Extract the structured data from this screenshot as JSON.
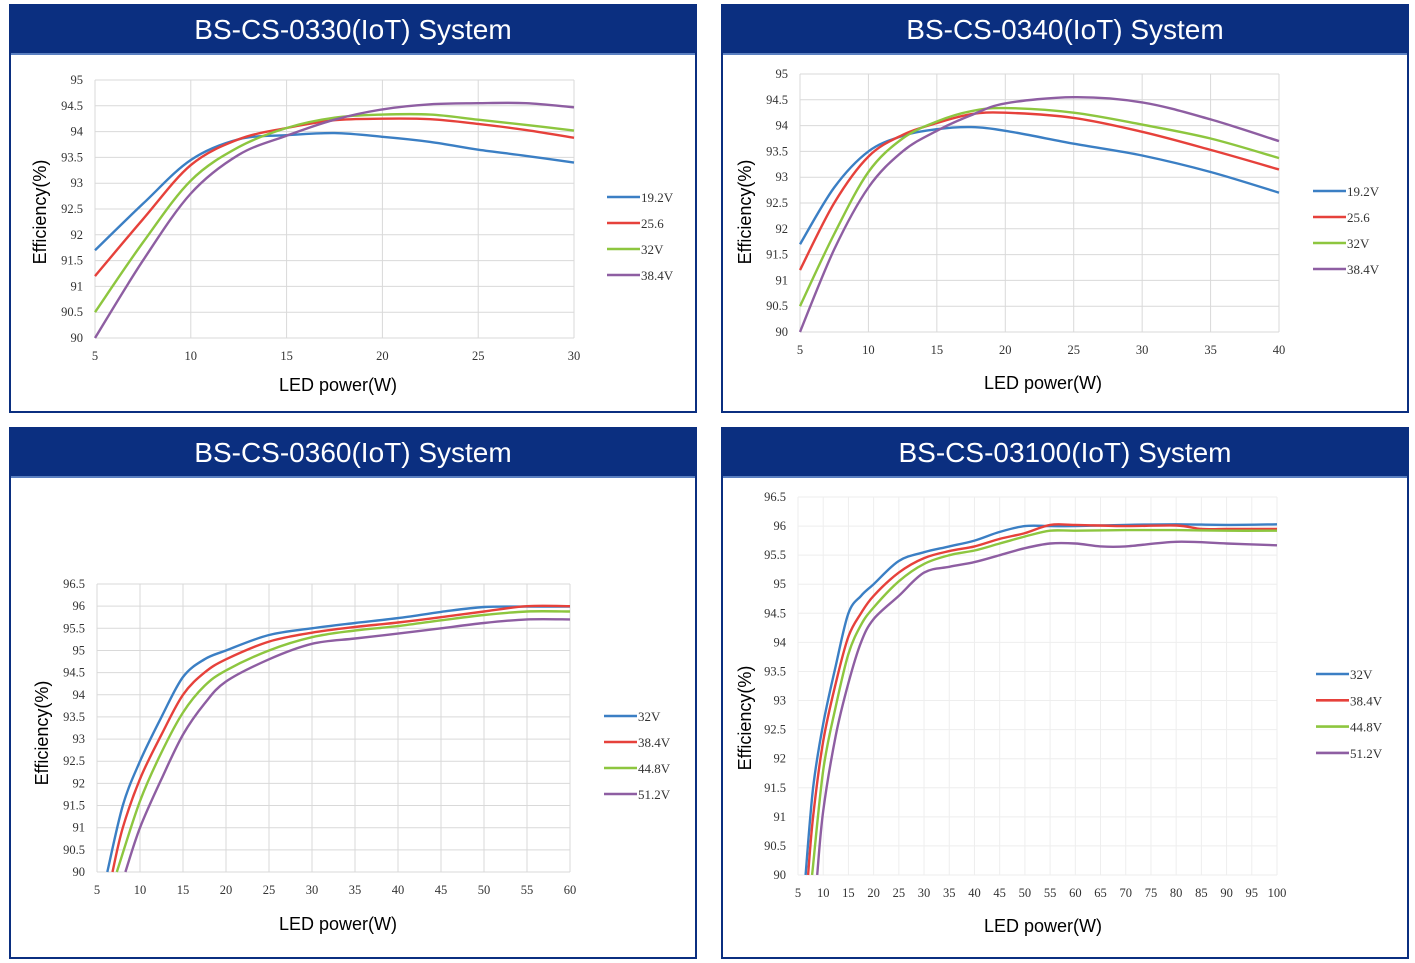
{
  "chart_data": [
    {
      "type": "line",
      "title": "BS-CS-0330(IoT) System",
      "xlabel": "LED power(W)",
      "ylabel": "Efficiency(%)",
      "xlim": [
        5,
        30
      ],
      "ylim": [
        90,
        95
      ],
      "xticks": [
        "5",
        "10",
        "15",
        "20",
        "25",
        "30"
      ],
      "yticks": [
        "90",
        "90.5",
        "91",
        "91.5",
        "92",
        "92.5",
        "93",
        "93.5",
        "94",
        "94.5",
        "95"
      ],
      "grid": true,
      "legend_position": "right",
      "series": [
        {
          "name": "19.2V",
          "color": "#3b7fc4",
          "x": [
            5,
            7.5,
            10,
            12.5,
            15,
            17.5,
            20,
            22.5,
            25,
            27.5,
            30
          ],
          "y": [
            91.7,
            92.6,
            93.45,
            93.85,
            93.93,
            93.97,
            93.9,
            93.8,
            93.65,
            93.53,
            93.4
          ]
        },
        {
          "name": "25.6",
          "color": "#e6413b",
          "x": [
            5,
            7.5,
            10,
            12.5,
            15,
            17.5,
            20,
            22.5,
            25,
            27.5,
            30
          ],
          "y": [
            91.2,
            92.3,
            93.35,
            93.85,
            94.07,
            94.22,
            94.25,
            94.24,
            94.15,
            94.03,
            93.88
          ]
        },
        {
          "name": "32V",
          "color": "#8dc63f",
          "x": [
            5,
            7.5,
            10,
            12.5,
            15,
            17.5,
            20,
            22.5,
            25,
            27.5,
            30
          ],
          "y": [
            90.5,
            91.85,
            93.05,
            93.7,
            94.07,
            94.27,
            94.33,
            94.33,
            94.23,
            94.13,
            94.02
          ]
        },
        {
          "name": "38.4V",
          "color": "#8e5ea2",
          "x": [
            5,
            7.5,
            10,
            12.5,
            15,
            17.5,
            20,
            22.5,
            25,
            27.5,
            30
          ],
          "y": [
            90.0,
            91.5,
            92.8,
            93.55,
            93.92,
            94.23,
            94.43,
            94.53,
            94.55,
            94.55,
            94.47
          ]
        }
      ]
    },
    {
      "type": "line",
      "title": "BS-CS-0340(IoT) System",
      "xlabel": "LED power(W)",
      "ylabel": "Efficiency(%)",
      "xlim": [
        5,
        40
      ],
      "ylim": [
        90,
        95
      ],
      "xticks": [
        "5",
        "10",
        "15",
        "20",
        "25",
        "30",
        "35",
        "40"
      ],
      "yticks": [
        "90",
        "90.5",
        "91",
        "91.5",
        "92",
        "92.5",
        "93",
        "93.5",
        "94",
        "94.5",
        "95"
      ],
      "grid": true,
      "legend_position": "right",
      "series": [
        {
          "name": "19.2V",
          "color": "#3b7fc4",
          "x": [
            5,
            7.5,
            10,
            12.5,
            15,
            17.5,
            20,
            25,
            30,
            35,
            40
          ],
          "y": [
            91.7,
            92.8,
            93.5,
            93.8,
            93.93,
            93.97,
            93.9,
            93.65,
            93.42,
            93.1,
            92.7
          ]
        },
        {
          "name": "25.6",
          "color": "#e6413b",
          "x": [
            5,
            7.5,
            10,
            12.5,
            15,
            17.5,
            20,
            25,
            30,
            35,
            40
          ],
          "y": [
            91.2,
            92.5,
            93.4,
            93.82,
            94.05,
            94.22,
            94.25,
            94.15,
            93.88,
            93.53,
            93.15
          ]
        },
        {
          "name": "32V",
          "color": "#8dc63f",
          "x": [
            5,
            7.5,
            10,
            12.5,
            15,
            17.5,
            20,
            25,
            30,
            35,
            40
          ],
          "y": [
            90.5,
            91.9,
            93.1,
            93.75,
            94.08,
            94.28,
            94.34,
            94.25,
            94.02,
            93.75,
            93.37
          ]
        },
        {
          "name": "38.4V",
          "color": "#8e5ea2",
          "x": [
            5,
            7.5,
            10,
            12.5,
            15,
            17.5,
            20,
            25,
            30,
            35,
            40
          ],
          "y": [
            90.0,
            91.6,
            92.8,
            93.5,
            93.9,
            94.2,
            94.43,
            94.55,
            94.45,
            94.12,
            93.7
          ]
        }
      ]
    },
    {
      "type": "line",
      "title": "BS-CS-0360(IoT) System",
      "xlabel": "LED power(W)",
      "ylabel": "Efficiency(%)",
      "xlim": [
        5,
        60
      ],
      "ylim": [
        90,
        96.5
      ],
      "xticks": [
        "5",
        "10",
        "15",
        "20",
        "25",
        "30",
        "35",
        "40",
        "45",
        "50",
        "55",
        "60"
      ],
      "yticks": [
        "90",
        "90.5",
        "91",
        "91.5",
        "92",
        "92.5",
        "93",
        "93.5",
        "94",
        "94.5",
        "95",
        "95.5",
        "96",
        "96.5"
      ],
      "grid": true,
      "legend_position": "right",
      "series": [
        {
          "name": "32V",
          "color": "#3b7fc4",
          "x": [
            6.2,
            8,
            10,
            12.5,
            15,
            17.5,
            20,
            25,
            30,
            35,
            40,
            45,
            50,
            55,
            60
          ],
          "y": [
            90,
            91.5,
            92.5,
            93.5,
            94.4,
            94.8,
            95.0,
            95.35,
            95.5,
            95.62,
            95.73,
            95.87,
            95.98,
            95.99,
            95.99
          ]
        },
        {
          "name": "38.4V",
          "color": "#e6413b",
          "x": [
            6.8,
            8,
            10,
            12.5,
            15,
            17.5,
            20,
            25,
            30,
            35,
            40,
            45,
            50,
            55,
            60
          ],
          "y": [
            90,
            91,
            92.1,
            93.1,
            94.0,
            94.5,
            94.8,
            95.2,
            95.4,
            95.53,
            95.63,
            95.75,
            95.88,
            96.0,
            96.0
          ]
        },
        {
          "name": "44.8V",
          "color": "#8dc63f",
          "x": [
            7.3,
            10,
            12.5,
            15,
            17.5,
            20,
            25,
            30,
            35,
            40,
            45,
            50,
            55,
            60
          ],
          "y": [
            90,
            91.6,
            92.7,
            93.6,
            94.2,
            94.55,
            95.0,
            95.3,
            95.45,
            95.55,
            95.68,
            95.8,
            95.88,
            95.88
          ]
        },
        {
          "name": "51.2V",
          "color": "#8e5ea2",
          "x": [
            8.3,
            10,
            12.5,
            15,
            17.5,
            20,
            25,
            30,
            35,
            40,
            45,
            50,
            55,
            60
          ],
          "y": [
            90,
            91,
            92.1,
            93.1,
            93.8,
            94.3,
            94.8,
            95.15,
            95.27,
            95.38,
            95.5,
            95.62,
            95.7,
            95.7
          ]
        }
      ]
    },
    {
      "type": "line",
      "title": "BS-CS-03100(IoT) System",
      "xlabel": "LED power(W)",
      "ylabel": "Efficiency(%)",
      "xlim": [
        5,
        100
      ],
      "ylim": [
        90,
        96.5
      ],
      "xticks": [
        "5",
        "10",
        "15",
        "20",
        "25",
        "30",
        "35",
        "40",
        "45",
        "50",
        "55",
        "60",
        "65",
        "70",
        "75",
        "80",
        "85",
        "90",
        "95",
        "100"
      ],
      "yticks": [
        "90",
        "90.5",
        "91",
        "91.5",
        "92",
        "92.5",
        "93",
        "93.5",
        "94",
        "94.5",
        "95",
        "95.5",
        "96",
        "96.5"
      ],
      "grid": true,
      "legend_position": "right",
      "series": [
        {
          "name": "32V",
          "color": "#3b7fc4",
          "x": [
            6.5,
            8,
            10,
            12.5,
            15,
            17.5,
            20,
            25,
            30,
            35,
            40,
            45,
            50,
            55,
            60,
            70,
            80,
            90,
            100
          ],
          "y": [
            90,
            91.5,
            92.6,
            93.6,
            94.5,
            94.8,
            95.0,
            95.4,
            95.55,
            95.65,
            95.75,
            95.9,
            96.0,
            96.0,
            96.0,
            96.02,
            96.03,
            96.02,
            96.03
          ]
        },
        {
          "name": "38.4V",
          "color": "#e6413b",
          "x": [
            7,
            8,
            10,
            12.5,
            15,
            17.5,
            20,
            25,
            30,
            35,
            40,
            45,
            50,
            55,
            60,
            70,
            80,
            85,
            90,
            100
          ],
          "y": [
            90,
            91,
            92.3,
            93.3,
            94.1,
            94.5,
            94.8,
            95.2,
            95.45,
            95.57,
            95.65,
            95.78,
            95.88,
            96.02,
            96.02,
            96.0,
            96.01,
            95.95,
            95.95,
            95.95
          ]
        },
        {
          "name": "44.8V",
          "color": "#8dc63f",
          "x": [
            7.8,
            10,
            12.5,
            15,
            17.5,
            20,
            25,
            30,
            35,
            40,
            45,
            50,
            55,
            60,
            70,
            80,
            90,
            100
          ],
          "y": [
            90,
            91.8,
            92.9,
            93.8,
            94.3,
            94.6,
            95.05,
            95.35,
            95.5,
            95.58,
            95.7,
            95.82,
            95.92,
            95.92,
            95.93,
            95.93,
            95.92,
            95.92
          ]
        },
        {
          "name": "51.2V",
          "color": "#8e5ea2",
          "x": [
            8.8,
            10,
            12.5,
            15,
            17.5,
            20,
            25,
            30,
            35,
            40,
            45,
            50,
            55,
            60,
            65,
            70,
            80,
            90,
            100
          ],
          "y": [
            90,
            91.1,
            92.4,
            93.3,
            94.0,
            94.4,
            94.8,
            95.2,
            95.3,
            95.38,
            95.5,
            95.62,
            95.7,
            95.7,
            95.65,
            95.65,
            95.73,
            95.7,
            95.67
          ]
        }
      ]
    }
  ]
}
